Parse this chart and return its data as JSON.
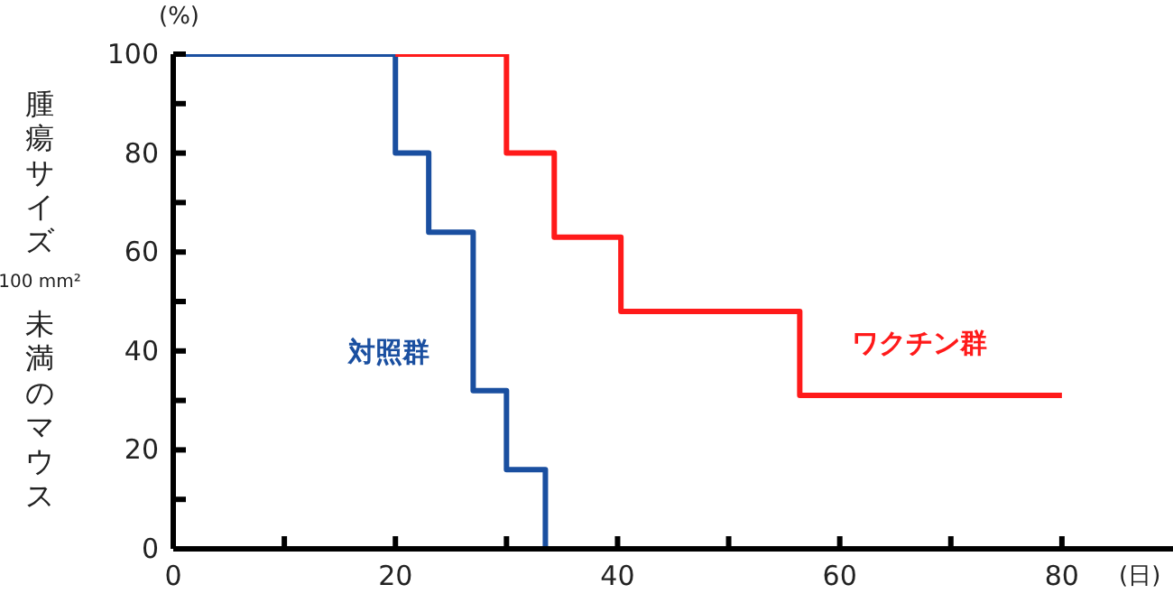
{
  "chart_data": {
    "type": "step",
    "ylabel": "腫瘍サイズ100 mm²未満のマウス",
    "xlabel": "(日)",
    "annotations": [
      "(%)",
      "対照群",
      "ワクチン群"
    ],
    "series": [
      {
        "color": "#1a4fa0",
        "x": [
          0,
          20,
          23,
          27,
          30,
          33.5
        ],
        "values": [
          100,
          80,
          64,
          32,
          16,
          0
        ]
      },
      {
        "color": "#ff1a1a",
        "x": [
          20,
          30,
          34.3,
          40.3,
          56.4,
          80
        ],
        "values": [
          100,
          80,
          63,
          48,
          31,
          31
        ]
      }
    ],
    "xlim": [
      0,
      90
    ],
    "xticks": [
      0,
      {
        "value": 10,
        "label": null
      },
      20,
      {
        "value": 30,
        "label": null
      },
      40,
      {
        "value": 50,
        "label": null
      },
      60,
      {
        "value": 70,
        "label": null
      },
      80
    ],
    "ylim": [
      0,
      100
    ],
    "yticks": [
      0,
      {
        "value": 10,
        "label": null
      },
      20,
      {
        "value": 30,
        "label": null
      },
      40,
      {
        "value": 50,
        "label": null
      },
      60,
      {
        "value": 70,
        "label": null
      },
      80,
      {
        "value": 90,
        "label": null
      },
      100
    ],
    "grid": false,
    "legend": false,
    "marker": "none",
    "line_style": "solid"
  }
}
